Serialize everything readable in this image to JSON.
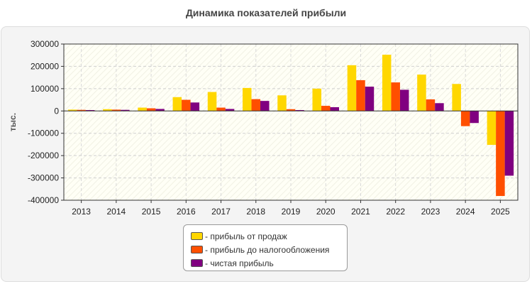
{
  "chart_data": {
    "type": "bar",
    "title": "Динамика показателей прибыли",
    "ylabel": "тыс.",
    "xlabel": "",
    "categories": [
      "2013",
      "2014",
      "2015",
      "2016",
      "2017",
      "2018",
      "2019",
      "2020",
      "2021",
      "2022",
      "2023",
      "2024",
      "2025"
    ],
    "series": [
      {
        "name": "- прибыль от продаж",
        "color": "#ffd700",
        "values": [
          6000,
          8000,
          15000,
          62000,
          85000,
          103000,
          70000,
          100000,
          205000,
          252000,
          163000,
          121000,
          -152000
        ]
      },
      {
        "name": "- прибыль до налогообложения",
        "color": "#ff4f00",
        "values": [
          5000,
          6000,
          12000,
          50000,
          15000,
          53000,
          8000,
          23000,
          138000,
          128000,
          52000,
          -68000,
          -381000
        ]
      },
      {
        "name": "- чистая прибыль",
        "color": "#800080",
        "values": [
          4000,
          5000,
          9000,
          38000,
          9000,
          45000,
          4000,
          17000,
          109000,
          95000,
          35000,
          -54000,
          -290000
        ]
      }
    ],
    "ylim": [
      -400000,
      300000
    ],
    "yticks": [
      300000,
      200000,
      100000,
      0,
      -100000,
      -200000,
      -300000,
      -400000
    ],
    "grid": true,
    "legend_position": "bottom-center"
  }
}
